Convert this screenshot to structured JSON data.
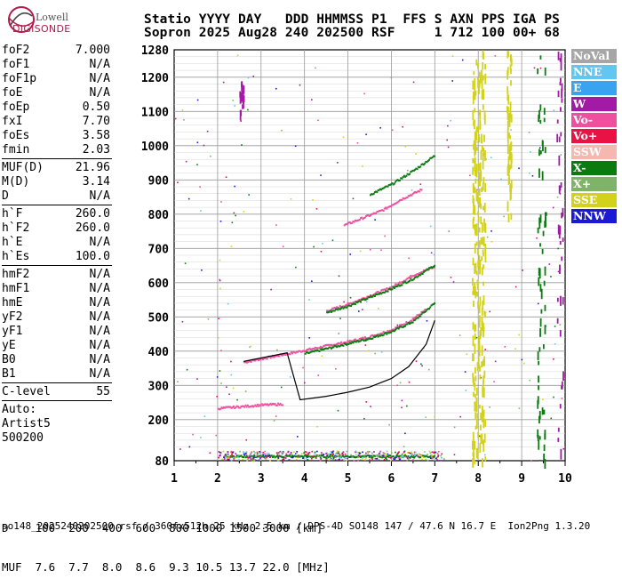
{
  "logo": {
    "line1": "Lowell",
    "line2": "DIGISONDE"
  },
  "header": {
    "line1": "Statio YYYY DAY   DDD HHMMSS P1  FFS S AXN PPS IGA PS",
    "line2": "Sopron 2025 Aug28 240 202500 RSF     1 712 100 00+ 68"
  },
  "params": {
    "group1": [
      {
        "k": "foF2",
        "v": "7.000"
      },
      {
        "k": "foF1",
        "v": "N/A"
      },
      {
        "k": "foF1p",
        "v": "N/A"
      },
      {
        "k": "foE",
        "v": "N/A"
      },
      {
        "k": "foEp",
        "v": "0.50"
      },
      {
        "k": "fxI",
        "v": "7.70"
      },
      {
        "k": "foEs",
        "v": "3.58"
      },
      {
        "k": "fmin",
        "v": "2.03"
      }
    ],
    "group2": [
      {
        "k": "MUF(D)",
        "v": "21.96"
      },
      {
        "k": "M(D)",
        "v": "3.14"
      },
      {
        "k": "D",
        "v": "N/A"
      }
    ],
    "group3": [
      {
        "k": "h`F",
        "v": "260.0"
      },
      {
        "k": "h`F2",
        "v": "260.0"
      },
      {
        "k": "h`E",
        "v": "N/A"
      },
      {
        "k": "h`Es",
        "v": "100.0"
      }
    ],
    "group4": [
      {
        "k": "hmF2",
        "v": "N/A"
      },
      {
        "k": "hmF1",
        "v": "N/A"
      },
      {
        "k": "hmE",
        "v": "N/A"
      },
      {
        "k": "yF2",
        "v": "N/A"
      },
      {
        "k": "yF1",
        "v": "N/A"
      },
      {
        "k": "yE",
        "v": "N/A"
      },
      {
        "k": "B0",
        "v": "N/A"
      },
      {
        "k": "B1",
        "v": "N/A"
      }
    ],
    "group5": [
      {
        "k": "C-level",
        "v": "55"
      }
    ],
    "auto": [
      "Auto:",
      "Artist5",
      "500200"
    ]
  },
  "legend": [
    {
      "label": "NoVal",
      "color": "#a6a6a6"
    },
    {
      "label": "NNE",
      "color": "#62c6f2"
    },
    {
      "label": "E",
      "color": "#3aa3f0"
    },
    {
      "label": "W",
      "color": "#a21aa6"
    },
    {
      "label": "Vo-",
      "color": "#ef4f9e"
    },
    {
      "label": "Vo+",
      "color": "#ea1244"
    },
    {
      "label": "SSW",
      "color": "#f6b7b1"
    },
    {
      "label": "X-",
      "color": "#0b7b10"
    },
    {
      "label": "X+",
      "color": "#7fb468"
    },
    {
      "label": "SSE",
      "color": "#d2d21c"
    },
    {
      "label": "NNW",
      "color": "#1a1ad4"
    }
  ],
  "footer": {
    "d_row": "D    100  200  400  600  800 1000 1500 3000 [km]",
    "muf_row": "MUF  7.6  7.7  8.0  8.6  9.3 10.5 13.7 22.0 [MHz]"
  },
  "filebar": "so148_2025240202500.rsf / 360fx512h 25 kHz 2.5 km / DPS-4D SO148 147 / 47.6 N 16.7 E  Ion2Png 1.3.20",
  "chart_data": {
    "type": "scatter",
    "xlabel": "",
    "ylabel": "",
    "xlim": [
      1,
      10
    ],
    "ylim": [
      80,
      1280
    ],
    "x_ticks": [
      1,
      2,
      3,
      4,
      5,
      6,
      7,
      8,
      9,
      10
    ],
    "y_ticks": [
      80,
      200,
      300,
      400,
      500,
      600,
      700,
      800,
      900,
      1000,
      1100,
      1200,
      1280
    ],
    "grid": true,
    "traces": [
      {
        "name": "O-trace F (Vo-)",
        "color": "#ef4f9e",
        "points": [
          [
            2.6,
            370
          ],
          [
            3.0,
            380
          ],
          [
            3.6,
            395
          ],
          [
            4.0,
            405
          ],
          [
            4.5,
            418
          ],
          [
            5.0,
            430
          ],
          [
            5.5,
            445
          ],
          [
            6.0,
            465
          ],
          [
            6.4,
            490
          ],
          [
            6.8,
            525
          ]
        ]
      },
      {
        "name": "X-trace F (X-)",
        "color": "#0b7b10",
        "points": [
          [
            4.0,
            395
          ],
          [
            4.5,
            410
          ],
          [
            5.0,
            425
          ],
          [
            5.5,
            440
          ],
          [
            6.0,
            460
          ],
          [
            6.5,
            490
          ],
          [
            7.0,
            545
          ]
        ]
      },
      {
        "name": "O-trace F 2nd hop (Vo-)",
        "color": "#ef4f9e",
        "points": [
          [
            4.5,
            520
          ],
          [
            5.0,
            540
          ],
          [
            5.5,
            565
          ],
          [
            6.0,
            590
          ],
          [
            6.5,
            625
          ],
          [
            7.0,
            650
          ]
        ]
      },
      {
        "name": "X-trace F 2nd hop (X-)",
        "color": "#0b7b10",
        "points": [
          [
            4.5,
            515
          ],
          [
            5.0,
            535
          ],
          [
            5.5,
            560
          ],
          [
            6.0,
            585
          ],
          [
            6.5,
            615
          ],
          [
            7.0,
            655
          ]
        ]
      },
      {
        "name": "O-trace F 3rd hop (Vo-)",
        "color": "#ef4f9e",
        "points": [
          [
            4.9,
            770
          ],
          [
            5.3,
            790
          ],
          [
            5.8,
            815
          ],
          [
            6.2,
            845
          ],
          [
            6.7,
            875
          ]
        ]
      },
      {
        "name": "X-trace F 3rd hop (X-)",
        "color": "#0b7b10",
        "points": [
          [
            5.5,
            860
          ],
          [
            6.0,
            890
          ],
          [
            6.5,
            930
          ],
          [
            7.0,
            975
          ]
        ]
      },
      {
        "name": "Es trace (X-)",
        "color": "#0b7b10",
        "points": [
          [
            2.2,
            95
          ],
          [
            3.0,
            95
          ],
          [
            4.0,
            95
          ],
          [
            5.0,
            95
          ],
          [
            6.0,
            95
          ],
          [
            7.0,
            95
          ]
        ]
      },
      {
        "name": "Es 2nd hop (Vo-)",
        "color": "#ef4f9e",
        "points": [
          [
            2.0,
            235
          ],
          [
            2.5,
            240
          ],
          [
            3.0,
            245
          ],
          [
            3.5,
            248
          ]
        ]
      }
    ],
    "artist_profile": {
      "name": "scaled trace",
      "color": "#000000",
      "points": [
        [
          2.6,
          370
        ],
        [
          3.0,
          380
        ],
        [
          3.6,
          395
        ],
        [
          3.9,
          258
        ],
        [
          4.5,
          268
        ],
        [
          5.0,
          280
        ],
        [
          5.5,
          295
        ],
        [
          6.0,
          320
        ],
        [
          6.4,
          355
        ],
        [
          6.8,
          420
        ],
        [
          7.0,
          490
        ]
      ]
    }
  }
}
